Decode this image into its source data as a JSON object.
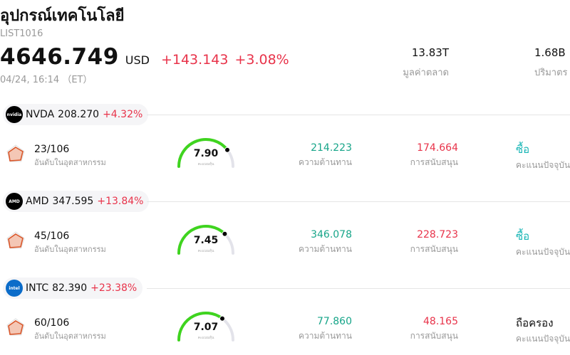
{
  "header": {
    "title": "อุปกรณ์เทคโนโลยี",
    "code": "LIST1016",
    "price": "4646.749",
    "currency": "USD",
    "change": "+143.143",
    "change_pct": "+3.08%",
    "timestamp": "04/24, 16:14 （ET）"
  },
  "stats": {
    "market_cap_value": "13.83T",
    "market_cap_label": "มูลค่าตลาด",
    "volume_value": "1.68B",
    "volume_label": "ปริมาตร"
  },
  "labels": {
    "rank_label": "อันดับในอุตสาหกรรม",
    "score_label": "คะแนนหุ้น",
    "resistance_label": "ความต้านทาน",
    "support_label": "การสนับสนุน",
    "rating_label": "คะแนนปัจจุบัน"
  },
  "stocks": [
    {
      "name": "NVDA",
      "price": "208.270",
      "pct": "+4.32%",
      "logo_text": "nvidia",
      "logo_color": "#000000",
      "rank": "23/106",
      "score": "7.90",
      "score_fraction": 0.79,
      "resistance": "214.223",
      "support": "174.664",
      "rating": "ซื้อ"
    },
    {
      "name": "AMD",
      "price": "347.595",
      "pct": "+13.84%",
      "logo_text": "AMD",
      "logo_color": "#000000",
      "rank": "45/106",
      "score": "7.45",
      "score_fraction": 0.745,
      "resistance": "346.078",
      "support": "228.723",
      "rating": "ซื้อ"
    },
    {
      "name": "INTC",
      "price": "82.390",
      "pct": "+23.38%",
      "logo_text": "intel",
      "logo_color": "#0b6cc9",
      "rank": "60/106",
      "score": "7.07",
      "score_fraction": 0.707,
      "resistance": "77.860",
      "support": "48.165",
      "rating": "ถือครอง"
    }
  ],
  "colors": {
    "up": "#e8334a",
    "resistance": "#17a589",
    "buy": "#17b5b5",
    "gauge_fill": "#3fd41f",
    "gauge_track": "#e3e3ea"
  }
}
